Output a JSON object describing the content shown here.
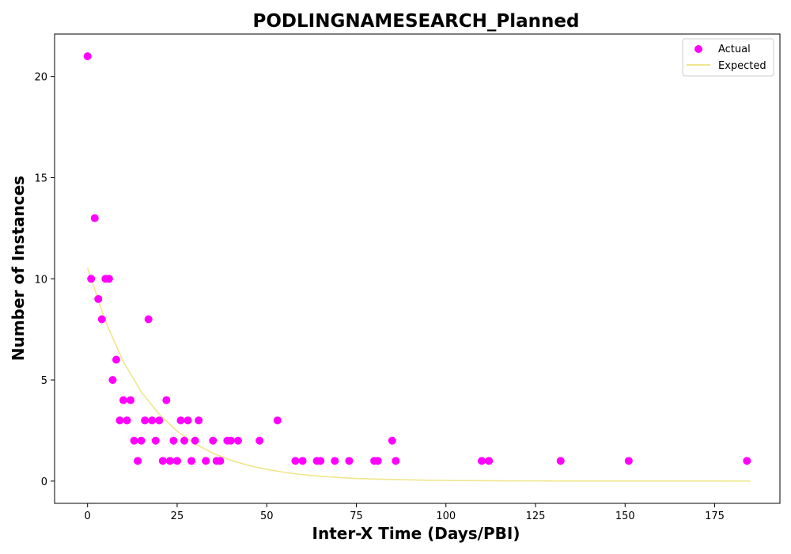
{
  "chart_data": {
    "type": "scatter",
    "title": "PODLINGNAMESEARCH_Planned",
    "xlabel": "Inter-X Time (Days/PBI)",
    "ylabel": "Number of Instances",
    "xlim": [
      -9.2,
      193.2
    ],
    "ylim": [
      -1.1,
      22.1
    ],
    "xticks": [
      0,
      25,
      50,
      75,
      100,
      125,
      150,
      175
    ],
    "yticks": [
      0,
      5,
      10,
      15,
      20
    ],
    "grid": false,
    "legend_position": "top-right",
    "series": [
      {
        "name": "Actual",
        "kind": "scatter",
        "color": "#ff00ff",
        "points": [
          [
            0,
            21
          ],
          [
            1,
            10
          ],
          [
            2,
            13
          ],
          [
            3,
            9
          ],
          [
            4,
            8
          ],
          [
            5,
            10
          ],
          [
            6,
            10
          ],
          [
            7,
            5
          ],
          [
            8,
            6
          ],
          [
            9,
            3
          ],
          [
            10,
            4
          ],
          [
            11,
            3
          ],
          [
            12,
            4
          ],
          [
            13,
            2
          ],
          [
            14,
            1
          ],
          [
            15,
            2
          ],
          [
            16,
            3
          ],
          [
            17,
            8
          ],
          [
            18,
            3
          ],
          [
            19,
            2
          ],
          [
            20,
            3
          ],
          [
            21,
            1
          ],
          [
            22,
            4
          ],
          [
            23,
            1
          ],
          [
            24,
            2
          ],
          [
            25,
            1
          ],
          [
            26,
            3
          ],
          [
            27,
            2
          ],
          [
            28,
            3
          ],
          [
            29,
            1
          ],
          [
            30,
            2
          ],
          [
            31,
            3
          ],
          [
            33,
            1
          ],
          [
            35,
            2
          ],
          [
            36,
            1
          ],
          [
            37,
            1
          ],
          [
            39,
            2
          ],
          [
            40,
            2
          ],
          [
            42,
            2
          ],
          [
            48,
            2
          ],
          [
            53,
            3
          ],
          [
            58,
            1
          ],
          [
            60,
            1
          ],
          [
            64,
            1
          ],
          [
            65,
            1
          ],
          [
            69,
            1
          ],
          [
            73,
            1
          ],
          [
            80,
            1
          ],
          [
            81,
            1
          ],
          [
            85,
            2
          ],
          [
            86,
            1
          ],
          [
            110,
            1
          ],
          [
            112,
            1
          ],
          [
            132,
            1
          ],
          [
            151,
            1
          ],
          [
            184,
            1
          ]
        ]
      },
      {
        "name": "Expected",
        "kind": "line",
        "color": "#f0e68c",
        "points": [
          [
            0,
            10.55
          ],
          [
            5,
            7.89
          ],
          [
            10,
            5.9
          ],
          [
            15,
            4.41
          ],
          [
            20,
            3.3
          ],
          [
            25,
            2.47
          ],
          [
            30,
            1.84
          ],
          [
            35,
            1.38
          ],
          [
            40,
            1.03
          ],
          [
            45,
            0.77
          ],
          [
            50,
            0.58
          ],
          [
            55,
            0.43
          ],
          [
            60,
            0.32
          ],
          [
            65,
            0.24
          ],
          [
            70,
            0.18
          ],
          [
            75,
            0.13
          ],
          [
            80,
            0.1
          ],
          [
            85,
            0.08
          ],
          [
            90,
            0.06
          ],
          [
            95,
            0.04
          ],
          [
            100,
            0.03
          ],
          [
            110,
            0.02
          ],
          [
            120,
            0.01
          ],
          [
            130,
            0.005
          ],
          [
            140,
            0.003
          ],
          [
            150,
            0.002
          ],
          [
            160,
            0.001
          ],
          [
            170,
            0.001
          ],
          [
            185,
            0.0
          ]
        ]
      }
    ]
  }
}
